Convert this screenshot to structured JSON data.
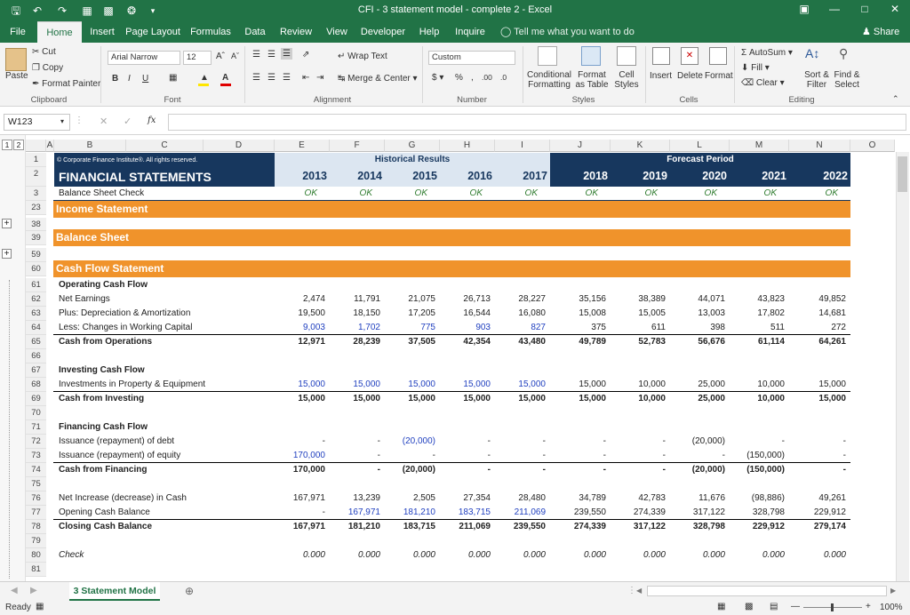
{
  "window": {
    "title": "CFI - 3 statement model - complete 2 - Excel"
  },
  "menu": {
    "tabs": [
      "File",
      "Home",
      "Insert",
      "Page Layout",
      "Formulas",
      "Data",
      "Review",
      "View",
      "Developer",
      "Help",
      "Inquire"
    ],
    "tell_me": "Tell me what you want to do",
    "share": "Share"
  },
  "ribbon": {
    "cut": "Cut",
    "copy": "Copy",
    "format_painter": "Format Painter",
    "paste": "Paste",
    "clipboard": "Clipboard",
    "font_name": "Arial Narrow",
    "font_size": "12",
    "font": "Font",
    "wrap_text": "Wrap Text",
    "merge_center": "Merge & Center",
    "alignment": "Alignment",
    "number_format": "Custom",
    "number": "Number",
    "conditional_formatting": "Conditional Formatting",
    "format_as_table": "Format as Table",
    "cell_styles": "Cell Styles",
    "styles": "Styles",
    "insert": "Insert",
    "delete": "Delete",
    "format": "Format",
    "cells": "Cells",
    "autosum": "AutoSum",
    "fill": "Fill",
    "clear": "Clear",
    "sort_filter": "Sort & Filter",
    "find_select": "Find & Select",
    "editing": "Editing"
  },
  "formula_bar": {
    "name_box": "W123",
    "fx": "fx",
    "content": ""
  },
  "columns": [
    "A",
    "B",
    "C",
    "D",
    "E",
    "F",
    "G",
    "H",
    "I",
    "J",
    "K",
    "L",
    "M",
    "N",
    "O"
  ],
  "outline_levels": [
    "1",
    "2"
  ],
  "sheet": {
    "copyright": "© Corporate Finance Institute®. All rights reserved.",
    "title": "FINANCIAL STATEMENTS",
    "historical_label": "Historical Results",
    "forecast_label": "Forecast Period",
    "years": [
      "2013",
      "2014",
      "2015",
      "2016",
      "2017",
      "2018",
      "2019",
      "2020",
      "2021",
      "2022"
    ],
    "check_label": "Balance Sheet Check",
    "ok": "OK",
    "income_statement": "Income Statement",
    "balance_sheet": "Balance Sheet",
    "cash_flow_statement": "Cash Flow Statement",
    "row_numbers": [
      "1",
      "2",
      "3",
      "23",
      "38",
      "39",
      "59",
      "60",
      "61",
      "62",
      "63",
      "64",
      "65",
      "66",
      "67",
      "68",
      "69",
      "70",
      "71",
      "72",
      "73",
      "74",
      "75",
      "76",
      "77",
      "78",
      "79",
      "80",
      "81"
    ],
    "operating": {
      "heading": "Operating Cash Flow",
      "rows": [
        {
          "label": "Net Earnings",
          "values": [
            "2,474",
            "11,791",
            "21,075",
            "26,713",
            "28,227",
            "35,156",
            "38,389",
            "44,071",
            "43,823",
            "49,852"
          ]
        },
        {
          "label": "Plus: Depreciation & Amortization",
          "values": [
            "19,500",
            "18,150",
            "17,205",
            "16,544",
            "16,080",
            "15,008",
            "15,005",
            "13,003",
            "17,802",
            "14,681"
          ]
        },
        {
          "label": "Less: Changes in Working Capital",
          "values": [
            "9,003",
            "1,702",
            "775",
            "903",
            "827",
            "375",
            "611",
            "398",
            "511",
            "272"
          ]
        },
        {
          "label": "Cash from Operations",
          "values": [
            "12,971",
            "28,239",
            "37,505",
            "42,354",
            "43,480",
            "49,789",
            "52,783",
            "56,676",
            "61,114",
            "64,261"
          ]
        }
      ]
    },
    "investing": {
      "heading": "Investing Cash Flow",
      "rows": [
        {
          "label": "Investments in Property & Equipment",
          "values": [
            "15,000",
            "15,000",
            "15,000",
            "15,000",
            "15,000",
            "15,000",
            "10,000",
            "25,000",
            "10,000",
            "15,000"
          ]
        },
        {
          "label": "Cash from Investing",
          "values": [
            "15,000",
            "15,000",
            "15,000",
            "15,000",
            "15,000",
            "15,000",
            "10,000",
            "25,000",
            "10,000",
            "15,000"
          ]
        }
      ]
    },
    "financing": {
      "heading": "Financing Cash Flow",
      "rows": [
        {
          "label": "Issuance (repayment) of debt",
          "values": [
            "-",
            "-",
            "(20,000)",
            "-",
            "-",
            "-",
            "-",
            "(20,000)",
            "-",
            "-"
          ]
        },
        {
          "label": "Issuance (repayment) of equity",
          "values": [
            "170,000",
            "-",
            "-",
            "-",
            "-",
            "-",
            "-",
            "-",
            "(150,000)",
            "-"
          ]
        },
        {
          "label": "Cash from Financing",
          "values": [
            "170,000",
            "-",
            "(20,000)",
            "-",
            "-",
            "-",
            "-",
            "(20,000)",
            "(150,000)",
            "-"
          ]
        }
      ]
    },
    "summary": {
      "rows": [
        {
          "label": "Net Increase (decrease) in Cash",
          "values": [
            "167,971",
            "13,239",
            "2,505",
            "27,354",
            "28,480",
            "34,789",
            "42,783",
            "11,676",
            "(98,886)",
            "49,261"
          ]
        },
        {
          "label": "Opening Cash Balance",
          "values": [
            "-",
            "167,971",
            "181,210",
            "183,715",
            "211,069",
            "239,550",
            "274,339",
            "317,122",
            "328,798",
            "229,912"
          ]
        },
        {
          "label": "Closing Cash Balance",
          "values": [
            "167,971",
            "181,210",
            "183,715",
            "211,069",
            "239,550",
            "274,339",
            "317,122",
            "328,798",
            "229,912",
            "279,174"
          ]
        }
      ]
    },
    "check2": {
      "label": "Check",
      "values": [
        "0.000",
        "0.000",
        "0.000",
        "0.000",
        "0.000",
        "0.000",
        "0.000",
        "0.000",
        "0.000",
        "0.000"
      ]
    }
  },
  "sheet_tab": "3 Statement Model",
  "status": {
    "ready": "Ready",
    "zoom": "100%"
  },
  "colors": {
    "excel_green": "#217346",
    "navy": "#17375e",
    "light_blue": "#dce6f1",
    "orange": "#f0932b",
    "blue_input": "#1f3fbf",
    "green_check": "#2c7a2c"
  }
}
